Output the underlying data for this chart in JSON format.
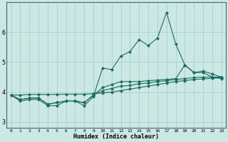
{
  "xlabel": "Humidex (Indice chaleur)",
  "bg_color": "#cce8e5",
  "grid_color": "#aacfcc",
  "line_color": "#1a6b60",
  "ylim": [
    2.8,
    7.0
  ],
  "xlim": [
    -0.5,
    23.5
  ],
  "yticks": [
    3,
    4,
    5,
    6
  ],
  "xticks": [
    0,
    1,
    2,
    3,
    4,
    5,
    6,
    7,
    8,
    9,
    10,
    11,
    12,
    13,
    14,
    15,
    16,
    17,
    18,
    19,
    20,
    21,
    22,
    23
  ],
  "series1": [
    3.9,
    3.7,
    3.75,
    3.75,
    3.55,
    3.55,
    3.7,
    3.7,
    3.55,
    3.85,
    4.8,
    4.75,
    5.2,
    5.35,
    5.75,
    5.55,
    5.8,
    6.65,
    5.6,
    4.9,
    4.65,
    4.65,
    4.5,
    4.45
  ],
  "series2": [
    3.9,
    3.75,
    3.8,
    3.8,
    3.6,
    3.65,
    3.7,
    3.7,
    3.65,
    3.9,
    4.15,
    4.25,
    4.35,
    4.35,
    4.35,
    4.38,
    4.4,
    4.42,
    4.45,
    4.9,
    4.65,
    4.7,
    4.6,
    4.5
  ],
  "series3": [
    3.9,
    3.75,
    3.8,
    3.8,
    3.6,
    3.65,
    3.7,
    3.7,
    3.65,
    3.9,
    4.05,
    4.12,
    4.2,
    4.22,
    4.28,
    4.3,
    4.35,
    4.38,
    4.42,
    4.45,
    4.48,
    4.5,
    4.5,
    4.5
  ],
  "series4": [
    3.9,
    3.9,
    3.92,
    3.92,
    3.92,
    3.92,
    3.93,
    3.93,
    3.93,
    3.95,
    3.97,
    4.0,
    4.05,
    4.1,
    4.15,
    4.2,
    4.25,
    4.3,
    4.35,
    4.38,
    4.42,
    4.44,
    4.46,
    4.48
  ]
}
